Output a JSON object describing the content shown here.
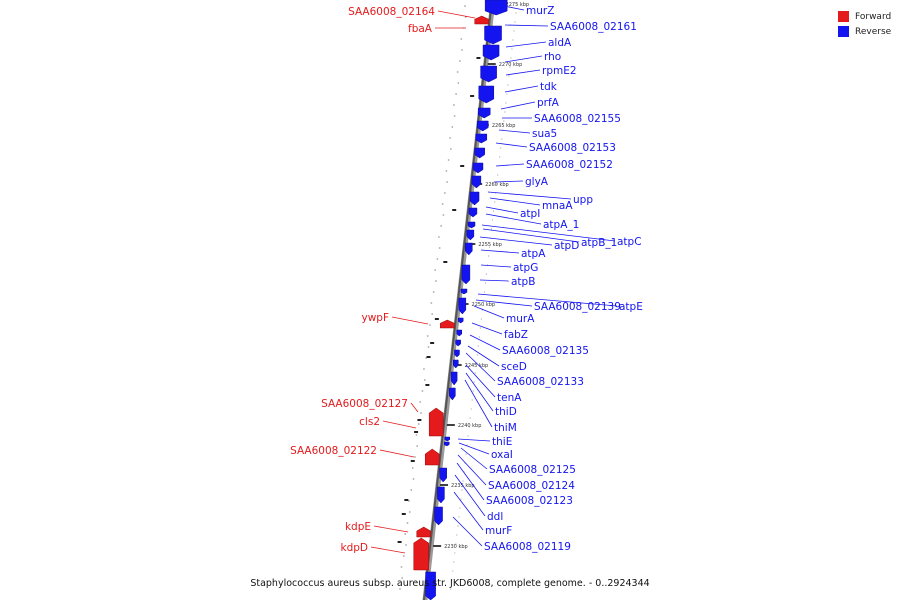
{
  "legend": {
    "forward_label": "Forward",
    "reverse_label": "Reverse",
    "forward_color": "#e41a1c",
    "reverse_color": "#1414f0"
  },
  "footer": {
    "caption": "Staphylococcus aureus subsp. aureus str. JKD6008, complete genome. - 0..2924344"
  },
  "map": {
    "ticks": [
      {
        "label": "2275 kbp"
      },
      {
        "label": "2270 kbp"
      },
      {
        "label": "2265 kbp"
      },
      {
        "label": "2260 kbp"
      },
      {
        "label": "2255 kbp"
      },
      {
        "label": "2250 kbp"
      },
      {
        "label": "2245 kbp"
      },
      {
        "label": "2240 kbp"
      },
      {
        "label": "2235 kbp"
      },
      {
        "label": "2230 kbp"
      }
    ],
    "forward_genes": [
      {
        "name": "SAA6008_02164"
      },
      {
        "name": "fbaA"
      },
      {
        "name": "ywpF"
      },
      {
        "name": "SAA6008_02127"
      },
      {
        "name": "cls2"
      },
      {
        "name": "SAA6008_02122"
      },
      {
        "name": "kdpE"
      },
      {
        "name": "kdpD"
      }
    ],
    "reverse_genes": [
      {
        "name": "murZ"
      },
      {
        "name": "SAA6008_02161"
      },
      {
        "name": "aldA"
      },
      {
        "name": "rho"
      },
      {
        "name": "rpmE2"
      },
      {
        "name": "tdk"
      },
      {
        "name": "prfA"
      },
      {
        "name": "SAA6008_02155"
      },
      {
        "name": "sua5"
      },
      {
        "name": "SAA6008_02153"
      },
      {
        "name": "SAA6008_02152"
      },
      {
        "name": "glyA"
      },
      {
        "name": "upp"
      },
      {
        "name": "mnaA"
      },
      {
        "name": "atpI"
      },
      {
        "name": "atpA_1"
      },
      {
        "name": "atpC"
      },
      {
        "name": "atpB_1"
      },
      {
        "name": "atpD"
      },
      {
        "name": "atpA"
      },
      {
        "name": "atpG"
      },
      {
        "name": "atpB"
      },
      {
        "name": "atpE"
      },
      {
        "name": "SAA6008_02139"
      },
      {
        "name": "murA"
      },
      {
        "name": "fabZ"
      },
      {
        "name": "SAA6008_02135"
      },
      {
        "name": "sceD"
      },
      {
        "name": "SAA6008_02133"
      },
      {
        "name": "tenA"
      },
      {
        "name": "thiD"
      },
      {
        "name": "thiM"
      },
      {
        "name": "thiE"
      },
      {
        "name": "oxaI"
      },
      {
        "name": "SAA6008_02125"
      },
      {
        "name": "SAA6008_02124"
      },
      {
        "name": "SAA6008_02123"
      },
      {
        "name": "ddl"
      },
      {
        "name": "murF"
      },
      {
        "name": "SAA6008_02119"
      }
    ]
  }
}
